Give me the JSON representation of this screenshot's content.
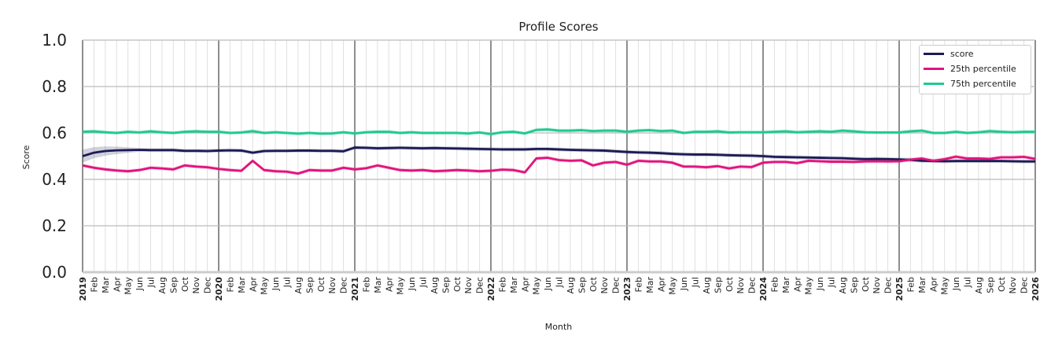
{
  "chart_data": {
    "type": "line",
    "title": "Profile Scores",
    "xlabel": "Month",
    "ylabel": "Score",
    "ylim": [
      0,
      1
    ],
    "yticks": [
      "0.0",
      "0.2",
      "0.4",
      "0.6",
      "0.8",
      "1.0"
    ],
    "x_start": "2019-01",
    "x_end": "2026-01",
    "year_labels": [
      "2019",
      "2020",
      "2021",
      "2022",
      "2023",
      "2024",
      "2025",
      "2026"
    ],
    "month_labels": [
      "Feb",
      "Mar",
      "Apr",
      "May",
      "Jun",
      "Jul",
      "Aug",
      "Sep",
      "Oct",
      "Nov",
      "Dec"
    ],
    "grid": true,
    "legend_position": "top-right",
    "series": [
      {
        "name": "score",
        "color": "#1b1b55",
        "values": [
          0.5,
          0.515,
          0.522,
          0.525,
          0.526,
          0.527,
          0.526,
          0.526,
          0.526,
          0.523,
          0.523,
          0.522,
          0.524,
          0.525,
          0.524,
          0.515,
          0.522,
          0.523,
          0.523,
          0.524,
          0.524,
          0.523,
          0.523,
          0.521,
          0.537,
          0.536,
          0.534,
          0.535,
          0.536,
          0.535,
          0.534,
          0.535,
          0.534,
          0.533,
          0.532,
          0.531,
          0.53,
          0.529,
          0.529,
          0.529,
          0.531,
          0.531,
          0.529,
          0.527,
          0.526,
          0.525,
          0.524,
          0.521,
          0.518,
          0.516,
          0.515,
          0.513,
          0.51,
          0.508,
          0.507,
          0.507,
          0.506,
          0.504,
          0.503,
          0.502,
          0.5,
          0.497,
          0.496,
          0.495,
          0.494,
          0.493,
          0.492,
          0.491,
          0.489,
          0.487,
          0.488,
          0.487,
          0.486,
          0.484,
          0.48,
          0.479,
          0.478,
          0.479,
          0.479,
          0.479,
          0.479,
          0.479,
          0.478,
          0.477,
          0.477
        ]
      },
      {
        "name": "25th percentile",
        "color": "#e0147c",
        "values": [
          0.46,
          0.45,
          0.443,
          0.438,
          0.435,
          0.44,
          0.45,
          0.447,
          0.443,
          0.46,
          0.455,
          0.452,
          0.445,
          0.44,
          0.437,
          0.48,
          0.44,
          0.435,
          0.433,
          0.425,
          0.44,
          0.438,
          0.438,
          0.45,
          0.443,
          0.448,
          0.46,
          0.45,
          0.44,
          0.438,
          0.44,
          0.435,
          0.437,
          0.44,
          0.438,
          0.435,
          0.437,
          0.442,
          0.44,
          0.43,
          0.49,
          0.493,
          0.483,
          0.48,
          0.482,
          0.46,
          0.472,
          0.475,
          0.463,
          0.48,
          0.477,
          0.477,
          0.472,
          0.455,
          0.455,
          0.452,
          0.457,
          0.447,
          0.455,
          0.453,
          0.472,
          0.475,
          0.475,
          0.47,
          0.48,
          0.478,
          0.476,
          0.476,
          0.475,
          0.477,
          0.478,
          0.477,
          0.478,
          0.485,
          0.49,
          0.48,
          0.487,
          0.498,
          0.49,
          0.49,
          0.488,
          0.495,
          0.495,
          0.497,
          0.488
        ]
      },
      {
        "name": "75th percentile",
        "color": "#1fc98f",
        "values": [
          0.605,
          0.607,
          0.603,
          0.6,
          0.605,
          0.602,
          0.607,
          0.603,
          0.6,
          0.605,
          0.607,
          0.605,
          0.605,
          0.6,
          0.602,
          0.608,
          0.6,
          0.603,
          0.6,
          0.597,
          0.6,
          0.597,
          0.598,
          0.603,
          0.598,
          0.603,
          0.605,
          0.605,
          0.6,
          0.603,
          0.6,
          0.6,
          0.6,
          0.6,
          0.598,
          0.602,
          0.595,
          0.603,
          0.605,
          0.598,
          0.613,
          0.615,
          0.61,
          0.61,
          0.612,
          0.608,
          0.61,
          0.61,
          0.605,
          0.61,
          0.612,
          0.608,
          0.61,
          0.6,
          0.605,
          0.605,
          0.607,
          0.602,
          0.603,
          0.603,
          0.603,
          0.605,
          0.607,
          0.603,
          0.605,
          0.607,
          0.605,
          0.61,
          0.607,
          0.603,
          0.602,
          0.602,
          0.602,
          0.607,
          0.61,
          0.6,
          0.6,
          0.605,
          0.6,
          0.603,
          0.608,
          0.605,
          0.603,
          0.605,
          0.605
        ]
      }
    ]
  }
}
